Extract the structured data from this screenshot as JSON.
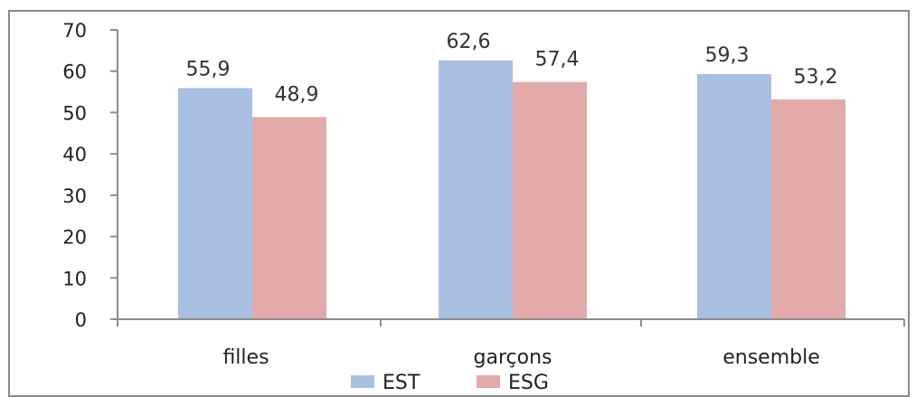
{
  "chart_data": {
    "type": "bar",
    "categories": [
      "filles",
      "garçons",
      "ensemble"
    ],
    "series": [
      {
        "name": "EST",
        "values": [
          55.9,
          62.6,
          59.3
        ],
        "labels": [
          "55,9",
          "62,6",
          "59,3"
        ],
        "color": "#a9c0e2"
      },
      {
        "name": "ESG",
        "values": [
          48.9,
          57.4,
          53.2
        ],
        "labels": [
          "48,9",
          "57,4",
          "53,2"
        ],
        "color": "#e3aaaa"
      }
    ],
    "yticks": [
      0,
      10,
      20,
      30,
      40,
      50,
      60,
      70
    ],
    "ylim": [
      0,
      70
    ],
    "grid": false,
    "legend": "bottom",
    "border_color": "#8a8a8a",
    "axis_color": "#8c8c8c"
  }
}
